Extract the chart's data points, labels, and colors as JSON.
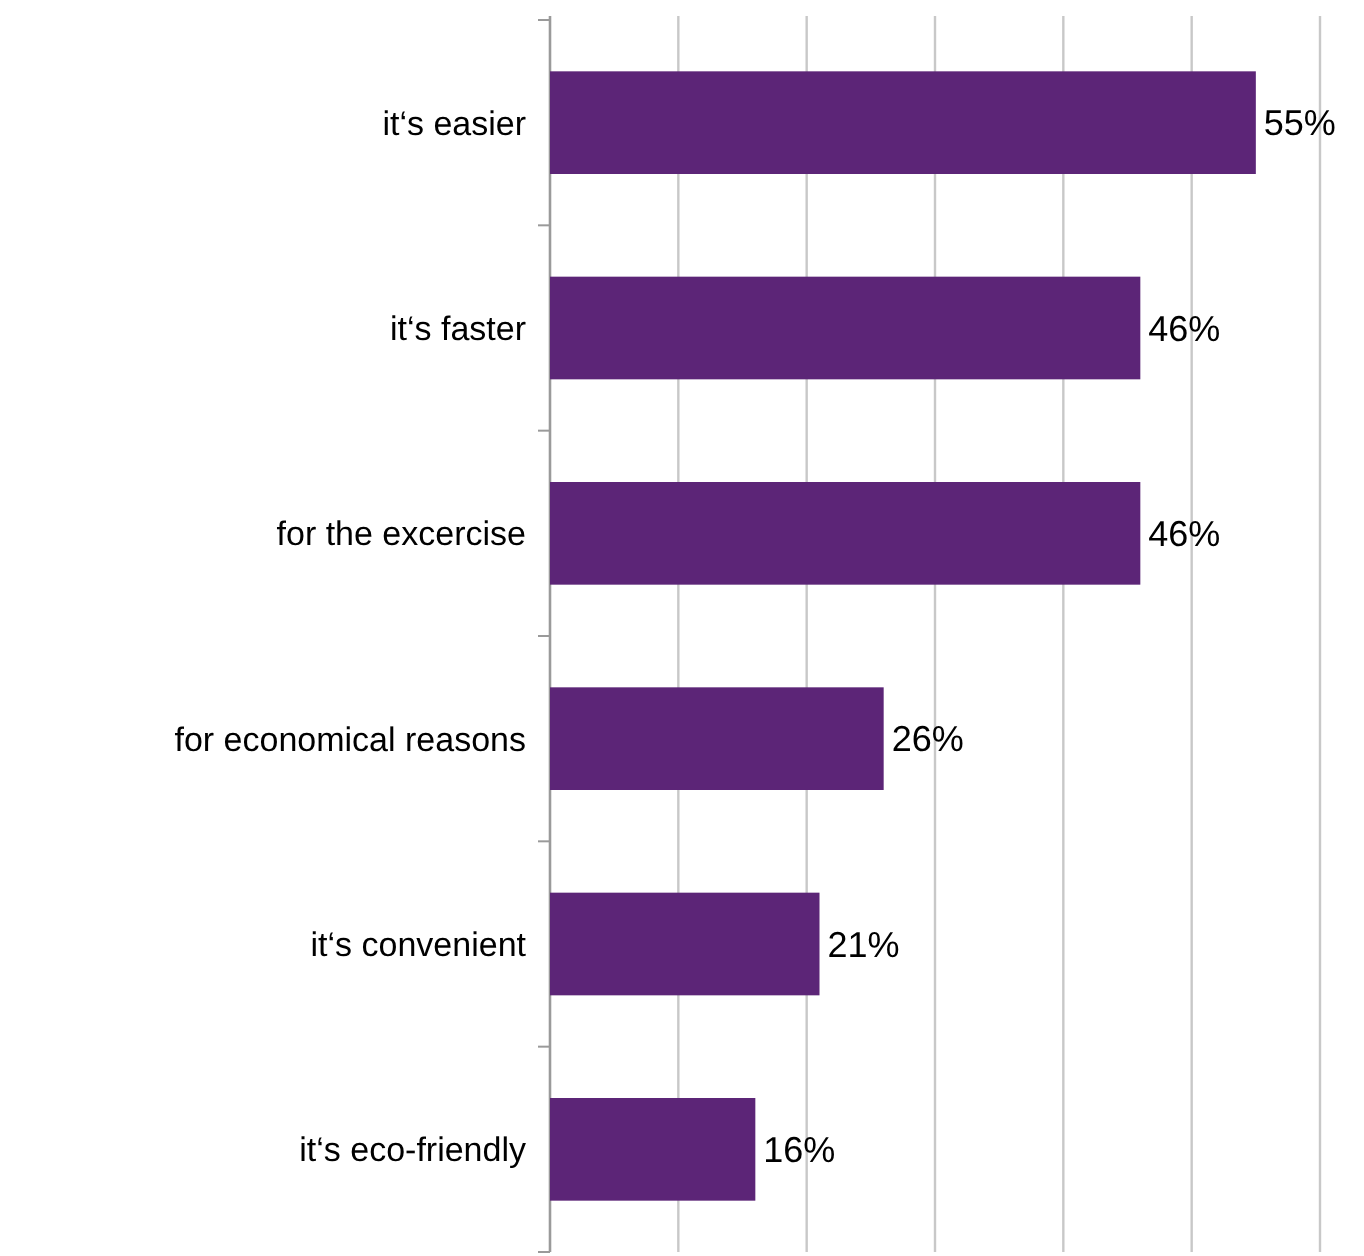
{
  "chart_data": {
    "type": "bar",
    "orientation": "horizontal",
    "categories": [
      "it‘s easier",
      "it‘s faster",
      "for the excercise",
      "for economical reasons",
      "it‘s convenient",
      "it‘s eco-friendly"
    ],
    "values": [
      55,
      46,
      46,
      26,
      21,
      16
    ],
    "value_labels": [
      "55%",
      "46%",
      "46%",
      "26%",
      "21%",
      "16%"
    ],
    "color": "#5c2577",
    "xlim": [
      0,
      60
    ],
    "xticks": [
      {
        "value": 0,
        "label": null
      },
      {
        "value": 10,
        "label": null
      },
      {
        "value": 20,
        "label": null
      },
      {
        "value": 30,
        "label": null
      },
      {
        "value": 40,
        "label": null
      },
      {
        "value": 50,
        "label": null
      },
      {
        "value": 60,
        "label": null
      }
    ],
    "grid": "x",
    "tick_labels": "y"
  }
}
